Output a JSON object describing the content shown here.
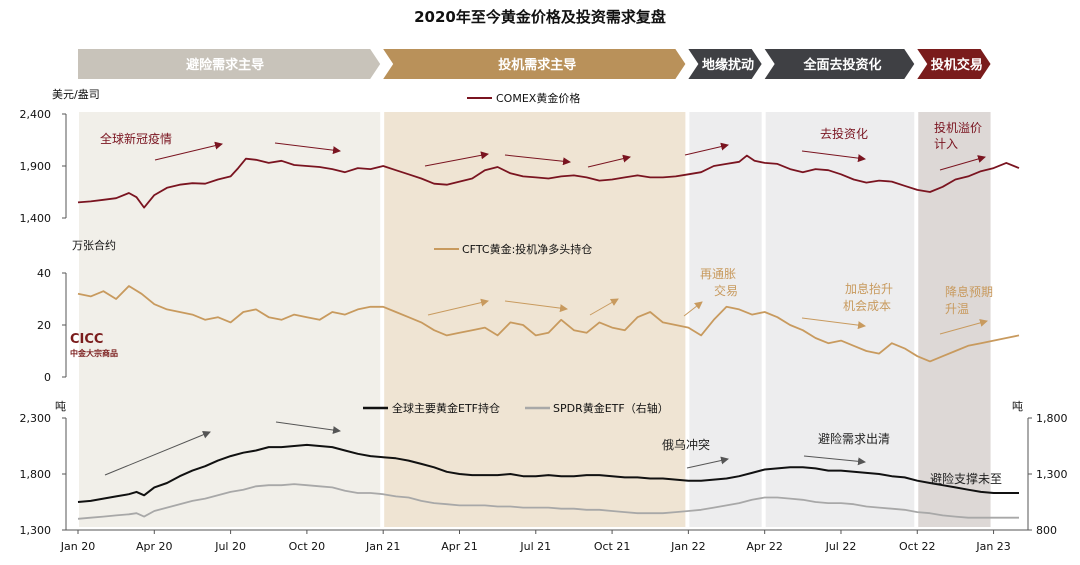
{
  "title": "2020年至今黄金价格及投资需求复盘",
  "logo": {
    "name": "CICC",
    "sub": "中金大宗商品"
  },
  "phases": [
    {
      "label": "避险需求主导",
      "color": "#c8c3ba",
      "start": 0.0,
      "end": 12.0
    },
    {
      "label": "投机需求主导",
      "color": "#b9915a",
      "start": 12.0,
      "end": 24.0
    },
    {
      "label": "地缘扰动",
      "color": "#3f4044",
      "start": 24.0,
      "end": 27.0
    },
    {
      "label": "全面去投资化",
      "color": "#3f4044",
      "start": 27.0,
      "end": 33.0
    },
    {
      "label": "投机交易",
      "color": "#7a1c1c",
      "start": 33.0,
      "end": 36.0
    }
  ],
  "shading": [
    {
      "start": 0.0,
      "end": 12.0,
      "color": "#f1efe9"
    },
    {
      "start": 12.0,
      "end": 24.0,
      "color": "#efe4d3"
    },
    {
      "start": 24.0,
      "end": 27.0,
      "color": "#ededee"
    },
    {
      "start": 27.0,
      "end": 33.0,
      "color": "#ededee"
    },
    {
      "start": 33.0,
      "end": 36.0,
      "color": "#ddd8d6"
    }
  ],
  "x_axis": {
    "ticks": [
      {
        "m": 0,
        "label": "Jan 20"
      },
      {
        "m": 3,
        "label": "Apr 20"
      },
      {
        "m": 6,
        "label": "Jul 20"
      },
      {
        "m": 9,
        "label": "Oct 20"
      },
      {
        "m": 12,
        "label": "Jan 21"
      },
      {
        "m": 15,
        "label": "Apr 21"
      },
      {
        "m": 18,
        "label": "Jul 21"
      },
      {
        "m": 21,
        "label": "Oct 21"
      },
      {
        "m": 24,
        "label": "Jan 22"
      },
      {
        "m": 27,
        "label": "Apr 22"
      },
      {
        "m": 30,
        "label": "Jul 22"
      },
      {
        "m": 33,
        "label": "Oct 22"
      },
      {
        "m": 36,
        "label": "Jan 23"
      }
    ]
  },
  "chart_data": [
    {
      "type": "line",
      "unit": "美元/盎司",
      "ylim": [
        1400,
        2400
      ],
      "yticks": [
        "1,400",
        "1,900",
        "2,400"
      ],
      "ytick_values": [
        1400,
        1900,
        2400
      ],
      "legend": "COMEX黄金价格",
      "color": "#7a1420",
      "x": [
        0,
        0.5,
        1,
        1.5,
        2,
        2.3,
        2.6,
        3,
        3.5,
        4,
        4.5,
        5,
        5.5,
        6,
        6.3,
        6.6,
        7,
        7.5,
        8,
        8.5,
        9,
        9.5,
        10,
        10.5,
        11,
        11.5,
        12,
        12.5,
        13,
        13.5,
        14,
        14.5,
        15,
        15.5,
        16,
        16.5,
        17,
        17.5,
        18,
        18.5,
        19,
        19.5,
        20,
        20.5,
        21,
        21.5,
        22,
        22.5,
        23,
        23.5,
        24,
        24.5,
        25,
        25.5,
        26,
        26.3,
        26.6,
        27,
        27.5,
        28,
        28.5,
        29,
        29.5,
        30,
        30.5,
        31,
        31.5,
        32,
        32.5,
        33,
        33.5,
        34,
        34.5,
        35,
        35.5,
        36,
        36.5,
        37
      ],
      "values": [
        1550,
        1560,
        1575,
        1590,
        1640,
        1600,
        1500,
        1620,
        1690,
        1720,
        1735,
        1730,
        1770,
        1800,
        1880,
        1970,
        1960,
        1930,
        1950,
        1910,
        1900,
        1890,
        1870,
        1840,
        1880,
        1870,
        1900,
        1860,
        1820,
        1780,
        1730,
        1720,
        1750,
        1780,
        1860,
        1890,
        1830,
        1800,
        1790,
        1780,
        1800,
        1810,
        1790,
        1760,
        1770,
        1790,
        1810,
        1790,
        1790,
        1800,
        1820,
        1840,
        1900,
        1920,
        1940,
        2000,
        1950,
        1930,
        1920,
        1870,
        1840,
        1870,
        1860,
        1820,
        1770,
        1740,
        1760,
        1750,
        1710,
        1670,
        1650,
        1700,
        1770,
        1800,
        1850,
        1880,
        1930,
        1880
      ]
    },
    {
      "type": "line",
      "unit": "万张合约",
      "ylim": [
        0,
        40
      ],
      "yticks": [
        "0",
        "20",
        "40"
      ],
      "ytick_values": [
        0,
        20,
        40
      ],
      "legend": "CFTC黄金:投机净多头持仓",
      "color": "#c89a5e",
      "x": [
        0,
        0.5,
        1,
        1.5,
        2,
        2.5,
        3,
        3.5,
        4,
        4.5,
        5,
        5.5,
        6,
        6.5,
        7,
        7.5,
        8,
        8.5,
        9,
        9.5,
        10,
        10.5,
        11,
        11.5,
        12,
        12.5,
        13,
        13.5,
        14,
        14.5,
        15,
        15.5,
        16,
        16.5,
        17,
        17.5,
        18,
        18.5,
        19,
        19.5,
        20,
        20.5,
        21,
        21.5,
        22,
        22.5,
        23,
        23.5,
        24,
        24.5,
        25,
        25.5,
        26,
        26.5,
        27,
        27.5,
        28,
        28.5,
        29,
        29.5,
        30,
        30.5,
        31,
        31.5,
        32,
        32.5,
        33,
        33.5,
        34,
        34.5,
        35,
        35.5,
        36,
        36.5,
        37
      ],
      "values": [
        32,
        31,
        33,
        30,
        35,
        32,
        28,
        26,
        25,
        24,
        22,
        23,
        21,
        25,
        26,
        23,
        22,
        24,
        23,
        22,
        25,
        24,
        26,
        27,
        27,
        25,
        23,
        21,
        18,
        16,
        17,
        18,
        19,
        16,
        21,
        20,
        16,
        17,
        22,
        18,
        17,
        21,
        19,
        18,
        23,
        25,
        21,
        20,
        19,
        16,
        22,
        27,
        26,
        24,
        25,
        23,
        20,
        18,
        15,
        13,
        14,
        12,
        10,
        9,
        13,
        11,
        8,
        6,
        8,
        10,
        12,
        13,
        14,
        15,
        16
      ]
    },
    {
      "type": "line",
      "unit": "吨",
      "ylim": [
        1300,
        2300
      ],
      "yticks": [
        "1,300",
        "1,800",
        "2,300"
      ],
      "ytick_values": [
        1300,
        1800,
        2300
      ],
      "right_ylim": [
        800,
        1800
      ],
      "right_yticks": [
        "800",
        "1,300",
        "1,800"
      ],
      "right_ytick_values": [
        800,
        1300,
        1800
      ],
      "series": [
        {
          "name": "全球主要黄金ETF持仓",
          "axis": "left",
          "color": "#111111",
          "x": [
            0,
            0.5,
            1,
            1.5,
            2,
            2.3,
            2.6,
            3,
            3.5,
            4,
            4.5,
            5,
            5.5,
            6,
            6.5,
            7,
            7.5,
            8,
            8.5,
            9,
            9.5,
            10,
            10.5,
            11,
            11.5,
            12,
            12.5,
            13,
            13.5,
            14,
            14.5,
            15,
            15.5,
            16,
            16.5,
            17,
            17.5,
            18,
            18.5,
            19,
            19.5,
            20,
            20.5,
            21,
            21.5,
            22,
            22.5,
            23,
            23.5,
            24,
            24.5,
            25,
            25.5,
            26,
            26.5,
            27,
            27.5,
            28,
            28.5,
            29,
            29.5,
            30,
            30.5,
            31,
            31.5,
            32,
            32.5,
            33,
            33.5,
            34,
            34.5,
            35,
            35.5,
            36,
            36.5,
            37
          ],
          "values": [
            1550,
            1560,
            1580,
            1600,
            1620,
            1640,
            1610,
            1680,
            1720,
            1780,
            1830,
            1870,
            1920,
            1960,
            1990,
            2010,
            2040,
            2040,
            2050,
            2060,
            2050,
            2040,
            2010,
            1980,
            1960,
            1950,
            1940,
            1920,
            1890,
            1860,
            1820,
            1800,
            1790,
            1790,
            1790,
            1800,
            1780,
            1780,
            1790,
            1780,
            1780,
            1790,
            1790,
            1780,
            1770,
            1770,
            1760,
            1760,
            1750,
            1740,
            1740,
            1750,
            1760,
            1780,
            1810,
            1840,
            1850,
            1860,
            1860,
            1850,
            1830,
            1830,
            1820,
            1810,
            1800,
            1780,
            1770,
            1740,
            1720,
            1700,
            1680,
            1660,
            1640,
            1630,
            1630,
            1630
          ]
        },
        {
          "name": "SPDR黄金ETF（右轴）",
          "axis": "right",
          "color": "#a8a8a8",
          "x": [
            0,
            0.5,
            1,
            1.5,
            2,
            2.3,
            2.6,
            3,
            3.5,
            4,
            4.5,
            5,
            5.5,
            6,
            6.5,
            7,
            7.5,
            8,
            8.5,
            9,
            9.5,
            10,
            10.5,
            11,
            11.5,
            12,
            12.5,
            13,
            13.5,
            14,
            14.5,
            15,
            15.5,
            16,
            16.5,
            17,
            17.5,
            18,
            18.5,
            19,
            19.5,
            20,
            20.5,
            21,
            21.5,
            22,
            22.5,
            23,
            23.5,
            24,
            24.5,
            25,
            25.5,
            26,
            26.5,
            27,
            27.5,
            28,
            28.5,
            29,
            29.5,
            30,
            30.5,
            31,
            31.5,
            32,
            32.5,
            33,
            33.5,
            34,
            34.5,
            35,
            35.5,
            36,
            36.5,
            37
          ],
          "values": [
            900,
            910,
            920,
            930,
            940,
            950,
            920,
            970,
            1000,
            1030,
            1060,
            1080,
            1110,
            1140,
            1160,
            1190,
            1200,
            1200,
            1210,
            1200,
            1190,
            1180,
            1150,
            1130,
            1130,
            1120,
            1100,
            1090,
            1060,
            1040,
            1030,
            1020,
            1020,
            1020,
            1010,
            1010,
            1000,
            1000,
            1000,
            990,
            990,
            980,
            980,
            970,
            960,
            950,
            950,
            950,
            960,
            970,
            980,
            1000,
            1020,
            1040,
            1070,
            1090,
            1090,
            1080,
            1070,
            1050,
            1040,
            1040,
            1030,
            1010,
            1000,
            990,
            980,
            960,
            950,
            930,
            920,
            910,
            910,
            910,
            910,
            910
          ]
        }
      ]
    }
  ],
  "annotations": {
    "a1": "全球新冠疫情",
    "a2": "去投资化",
    "a3": "投机溢价",
    "a3b": "计入",
    "a4": "再通胀",
    "a4b": "交易",
    "a5": "加息抬升",
    "a5b": "机会成本",
    "a6": "降息预期",
    "a6b": "升温",
    "a7": "俄乌冲突",
    "a8": "避险需求出清",
    "a9": "避险支撑未至"
  },
  "arrow_colors": {
    "price": "#7a1420",
    "cftc": "#c89a5e",
    "etf": "#555555"
  }
}
